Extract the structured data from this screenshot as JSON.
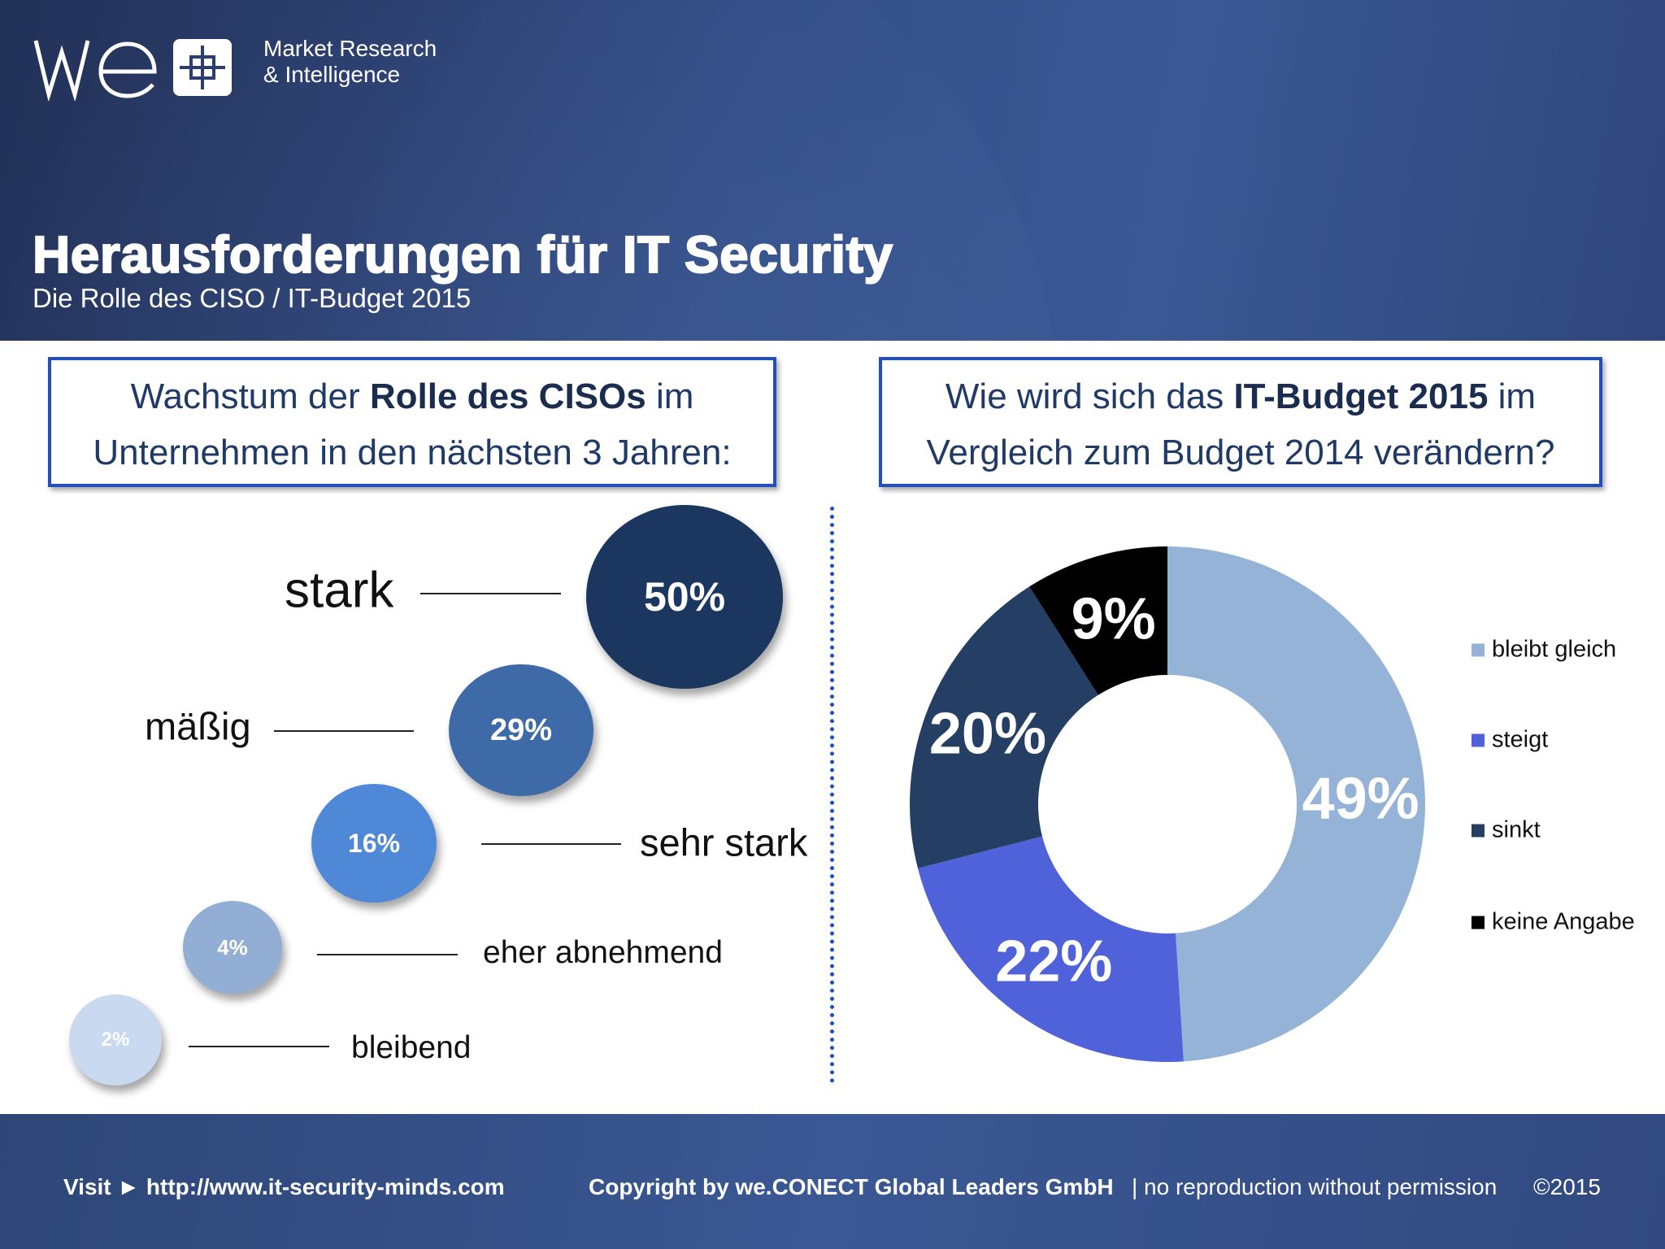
{
  "logo": {
    "wordmark": "we",
    "line1": "Market Research",
    "line2": "& Intelligence"
  },
  "header": {
    "title": "Herausforderungen für IT Security",
    "subtitle": "Die Rolle des CISO / IT-Budget 2015"
  },
  "left_question": {
    "pre": "Wachstum der ",
    "bold": "Rolle des CISOs",
    "post": " im",
    "line2": "Unternehmen in den nächsten 3 Jahren:"
  },
  "right_question": {
    "pre": "Wie wird sich das ",
    "bold": "IT-Budget 2015",
    "post": " im",
    "line2": "Vergleich zum Budget 2014 verändern?"
  },
  "chart_data": [
    {
      "type": "bubble",
      "categories": [
        "stark",
        "mäßig",
        "sehr stark",
        "eher abnehmend",
        "bleibend"
      ],
      "values": [
        50,
        29,
        16,
        4,
        2
      ],
      "labels": [
        "50%",
        "29%",
        "16%",
        "4%",
        "2%"
      ],
      "colors": [
        "#1b365f",
        "#3f6aa8",
        "#4f88d6",
        "#92aed4",
        "#c9d9ef"
      ]
    },
    {
      "type": "pie",
      "donut": true,
      "categories": [
        "bleibt gleich",
        "steigt",
        "sinkt",
        "keine Angabe"
      ],
      "values": [
        49,
        22,
        20,
        9
      ],
      "labels": [
        "49%",
        "22%",
        "20%",
        "9%"
      ],
      "colors": [
        "#95b3d7",
        "#4f62d9",
        "#243f63",
        "#000000"
      ],
      "legend": "right"
    }
  ],
  "footer": {
    "visit": "Visit ► http://www.it-security-minds.com",
    "copyright": "Copyright by we.CONECT Global Leaders GmbH",
    "notice": "| no reproduction without permission",
    "year": "©2015"
  }
}
